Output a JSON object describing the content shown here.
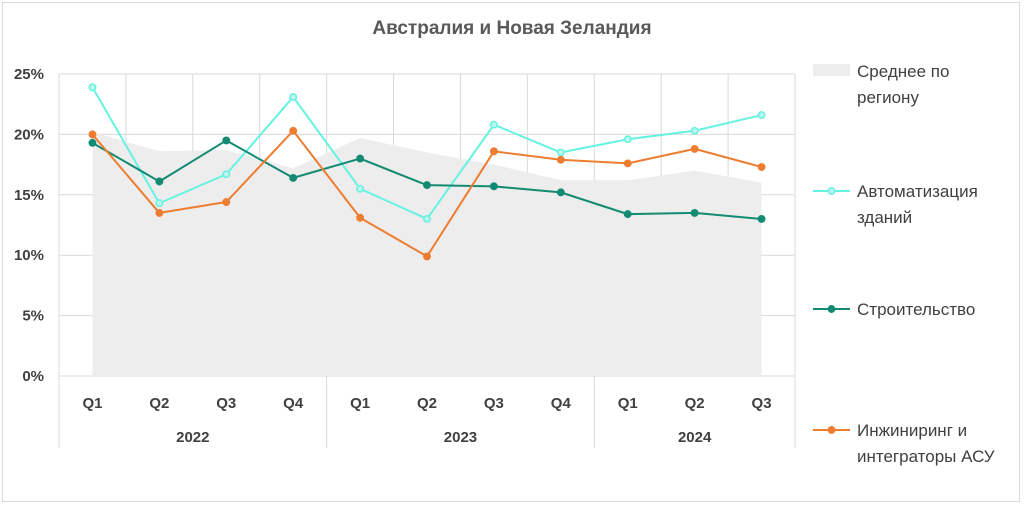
{
  "chart_data": {
    "type": "line",
    "title": "Австралия и Новая Зеландия",
    "quarters": [
      "Q1",
      "Q2",
      "Q3",
      "Q4",
      "Q1",
      "Q2",
      "Q3",
      "Q4",
      "Q1",
      "Q2",
      "Q3"
    ],
    "years": [
      {
        "label": "2022",
        "span": 4
      },
      {
        "label": "2023",
        "span": 4
      },
      {
        "label": "2024",
        "span": 3
      }
    ],
    "y_ticks": [
      "0%",
      "5%",
      "10%",
      "15%",
      "20%",
      "25%"
    ],
    "ylim": [
      0,
      25
    ],
    "grid": true,
    "legend_position": "right",
    "area": {
      "name_lines": [
        "Среднее по",
        "региону"
      ],
      "color": "#ededed",
      "values": [
        20.2,
        18.6,
        18.7,
        17.2,
        19.7,
        18.5,
        17.5,
        16.2,
        16.2,
        17.0,
        16.0
      ]
    },
    "series": [
      {
        "name_lines": [
          "Автоматизация",
          "зданий"
        ],
        "color": "#66f2e0",
        "marker_fill": "#b9f7ef",
        "values": [
          23.9,
          14.3,
          16.7,
          23.1,
          15.5,
          13.0,
          20.8,
          18.5,
          19.6,
          20.3,
          21.6
        ]
      },
      {
        "name_lines": [
          "Строительство"
        ],
        "color": "#138a72",
        "marker_fill": "#138a72",
        "values": [
          19.3,
          16.1,
          19.5,
          16.4,
          18.0,
          15.8,
          15.7,
          15.2,
          13.4,
          13.5,
          13.0
        ]
      },
      {
        "name_lines": [
          "Инжиниринг и",
          "интеграторы АСУ"
        ],
        "color": "#ed7d31",
        "marker_fill": "#ed7d31",
        "values": [
          20.0,
          13.5,
          14.4,
          20.3,
          13.1,
          9.9,
          18.6,
          17.9,
          17.6,
          18.8,
          17.3
        ]
      }
    ]
  }
}
